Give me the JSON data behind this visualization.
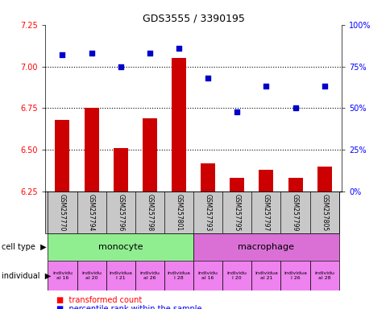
{
  "title": "GDS3555 / 3390195",
  "samples": [
    "GSM257770",
    "GSM257794",
    "GSM257796",
    "GSM257798",
    "GSM257801",
    "GSM257793",
    "GSM257795",
    "GSM257797",
    "GSM257799",
    "GSM257805"
  ],
  "bar_values": [
    6.68,
    6.75,
    6.51,
    6.69,
    7.05,
    6.42,
    6.33,
    6.38,
    6.33,
    6.4
  ],
  "scatter_values": [
    82,
    83,
    75,
    83,
    86,
    68,
    48,
    63,
    50,
    63
  ],
  "ylim_left": [
    6.25,
    7.25
  ],
  "ylim_right": [
    0,
    100
  ],
  "yticks_left": [
    6.25,
    6.5,
    6.75,
    7.0,
    7.25
  ],
  "yticks_right": [
    0,
    25,
    50,
    75,
    100
  ],
  "ytick_labels_right": [
    "0%",
    "25%",
    "50%",
    "75%",
    "100%"
  ],
  "bar_color": "#cc0000",
  "scatter_color": "#0000cc",
  "dotted_yticks": [
    6.5,
    6.75,
    7.0
  ],
  "cell_type_monocyte_color": "#90ee90",
  "cell_type_macrophage_color": "#da70d6",
  "individual_color": "#ee82ee",
  "gsm_band_color": "#c8c8c8",
  "legend_bar_label": "transformed count",
  "legend_scatter_label": "percentile rank within the sample",
  "individual_labels": [
    "individu\nal 16",
    "individu\nal 20",
    "individua\nl 21",
    "individu\nal 26",
    "individua\nl 28",
    "individu\nal 16",
    "individu\nl 20",
    "individua\nal 21",
    "individua\nl 26",
    "individu\nal 28"
  ]
}
